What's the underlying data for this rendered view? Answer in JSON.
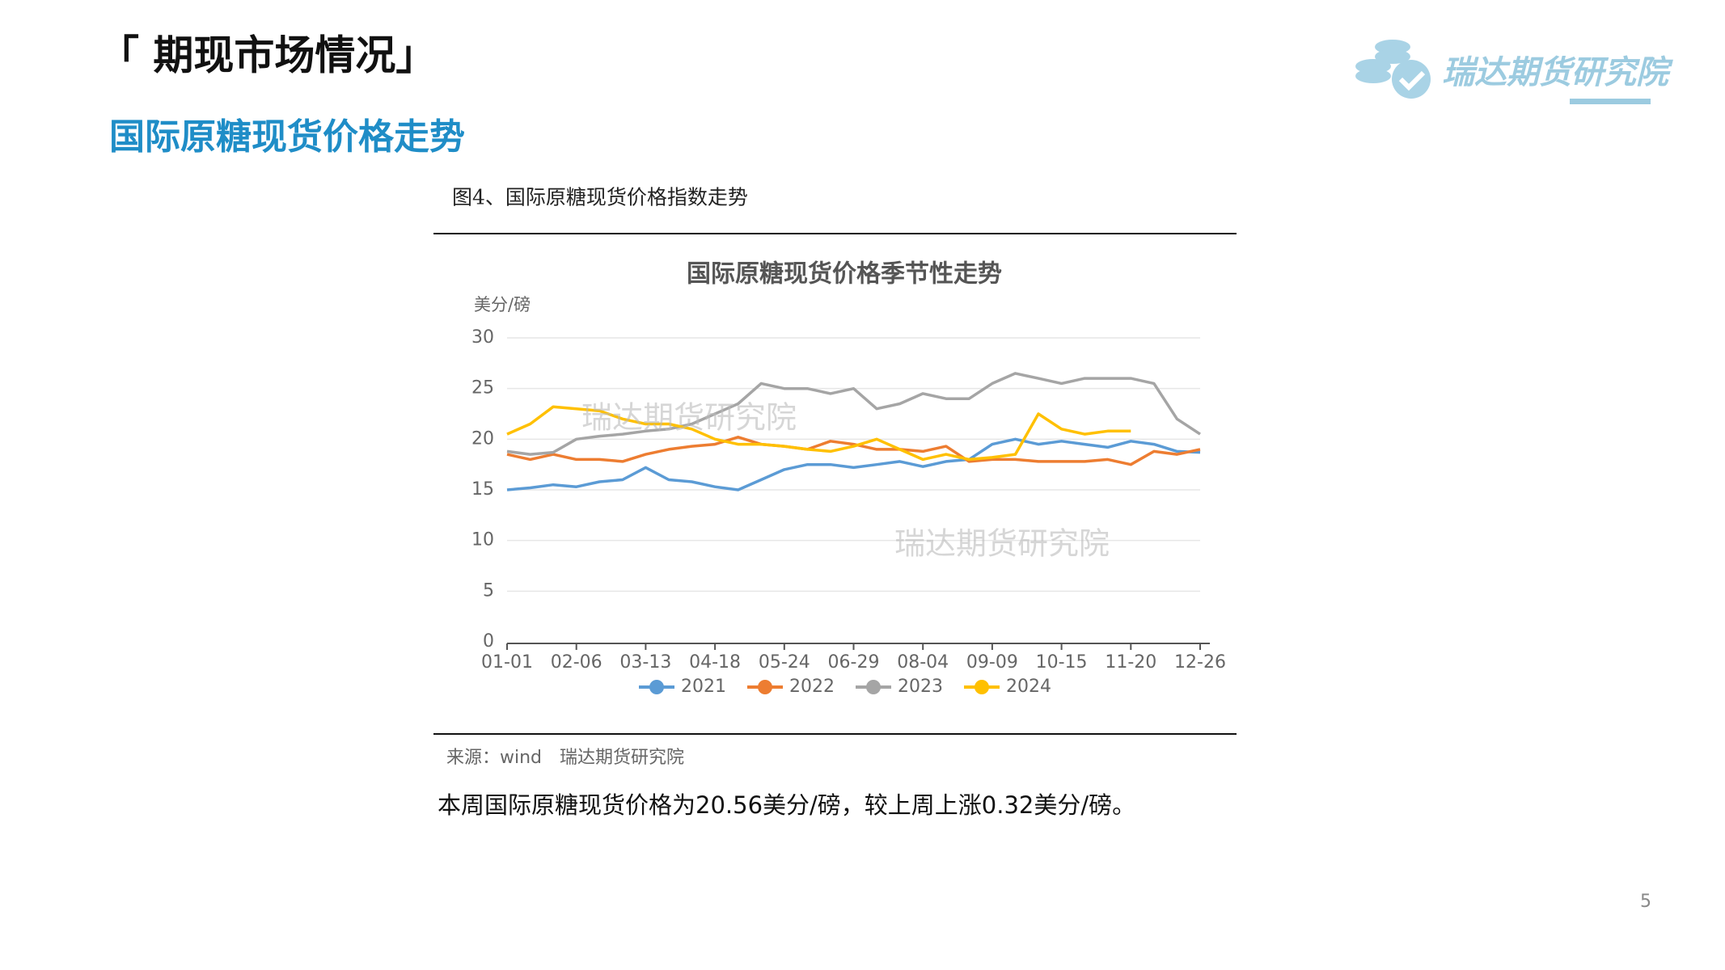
{
  "header": {
    "title": "「 期现市场情况」",
    "subtitle": "国际原糖现货价格走势",
    "logo": "瑞达期货研究院"
  },
  "figure": {
    "caption": "图4、国际原糖现货价格指数走势",
    "source": "来源：wind　瑞达期货研究院",
    "watermarks": [
      "瑞达期货研究院",
      "瑞达期货研究院"
    ]
  },
  "summary": "本周国际原糖现货价格为20.56美分/磅，较上周上涨0.32美分/磅。",
  "page_number": "5",
  "chart_data": {
    "type": "line",
    "title": "国际原糖现货价格季节性走势",
    "y_label": "美分/磅",
    "categories": [
      "01-01",
      null,
      null,
      "02-06",
      null,
      null,
      "03-13",
      null,
      null,
      "04-18",
      null,
      null,
      "05-24",
      null,
      null,
      "06-29",
      null,
      null,
      "08-04",
      null,
      null,
      "09-09",
      null,
      null,
      "10-15",
      null,
      null,
      "11-20",
      null,
      null,
      "12-26"
    ],
    "ylim": [
      0,
      30
    ],
    "yticks": [
      0,
      5,
      10,
      15,
      20,
      25,
      30
    ],
    "grid": true,
    "legend": "bottom",
    "series": [
      {
        "name": "2021",
        "color": "#5b9bd5",
        "values": [
          15.0,
          15.2,
          15.5,
          15.3,
          15.8,
          16.0,
          17.2,
          16.0,
          15.8,
          15.3,
          15.0,
          16.0,
          17.0,
          17.5,
          17.5,
          17.2,
          17.5,
          17.8,
          17.3,
          17.8,
          18.0,
          19.5,
          20.0,
          19.5,
          19.8,
          19.5,
          19.2,
          19.8,
          19.5,
          18.8,
          18.7
        ]
      },
      {
        "name": "2022",
        "color": "#ed7d31",
        "values": [
          18.5,
          18.0,
          18.5,
          18.0,
          18.0,
          17.8,
          18.5,
          19.0,
          19.3,
          19.5,
          20.2,
          19.5,
          19.3,
          19.0,
          19.8,
          19.5,
          19.0,
          19.0,
          18.8,
          19.3,
          17.8,
          18.0,
          18.0,
          17.8,
          17.8,
          17.8,
          18.0,
          17.5,
          18.8,
          18.5,
          19.0
        ]
      },
      {
        "name": "2023",
        "color": "#a5a5a5",
        "values": [
          18.8,
          18.5,
          18.7,
          20.0,
          20.3,
          20.5,
          20.8,
          21.0,
          21.5,
          22.5,
          23.5,
          25.5,
          25.0,
          25.0,
          24.5,
          25.0,
          23.0,
          23.5,
          24.5,
          24.0,
          24.0,
          25.5,
          26.5,
          26.0,
          25.5,
          26.0,
          26.0,
          26.0,
          25.5,
          22.0,
          20.5
        ]
      },
      {
        "name": "2024",
        "color": "#ffc000",
        "values": [
          20.5,
          21.5,
          23.2,
          23.0,
          22.8,
          22.0,
          21.5,
          21.5,
          21.0,
          20.0,
          19.5,
          19.5,
          19.3,
          19.0,
          18.8,
          19.3,
          20.0,
          19.0,
          18.0,
          18.5,
          18.0,
          18.2,
          18.5,
          22.5,
          21.0,
          20.5,
          20.8,
          20.8,
          null,
          null,
          null
        ]
      }
    ]
  }
}
